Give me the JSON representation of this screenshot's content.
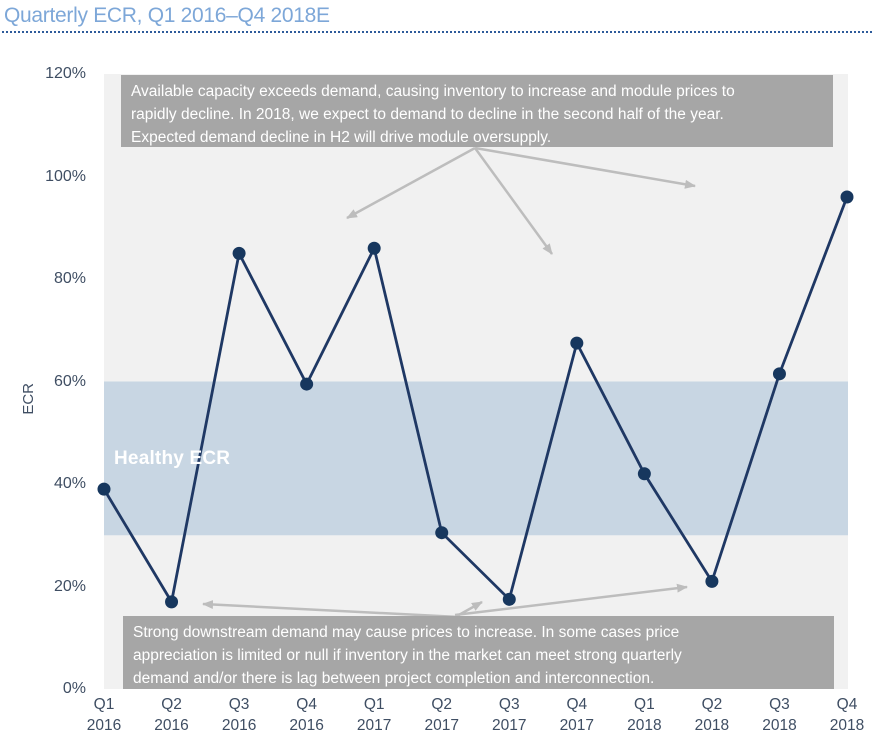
{
  "header": {
    "title": "Quarterly ECR, Q1 2016–Q4 2018E"
  },
  "chart_data": {
    "type": "line",
    "title": "Quarterly ECR, Q1 2016–Q4 2018E",
    "categories": [
      "Q1 2016",
      "Q2 2016",
      "Q3 2016",
      "Q4 2016",
      "Q1 2017",
      "Q2 2017",
      "Q3 2017",
      "Q4 2017",
      "Q1 2018",
      "Q2 2018",
      "Q3 2018",
      "Q4 2018"
    ],
    "values": [
      39,
      17,
      85,
      59.5,
      86,
      30.5,
      17.5,
      67.5,
      42,
      21,
      61.5,
      96
    ],
    "xlabel": "",
    "ylabel": "ECR",
    "ylim": [
      0,
      120
    ],
    "yticks": [
      0,
      20,
      40,
      60,
      80,
      100,
      120
    ],
    "ytick_suffix": "%",
    "grid": false,
    "legend": "none",
    "healthy_band": {
      "label": "Healthy ECR",
      "from": 30,
      "to": 60
    },
    "annotations": [
      {
        "position": "top",
        "lines": [
          "Available capacity exceeds demand, causing inventory to increase and module prices to",
          "rapidly decline. In 2018, we expect to demand to decline in the second half of the year.",
          "Expected demand decline in H2 will drive module oversupply."
        ]
      },
      {
        "position": "bottom",
        "lines": [
          "Strong downstream demand may cause prices to increase. In some cases price",
          "appreciation is limited or null if inventory in the market can meet strong quarterly",
          "demand and/or there is lag between project completion and interconnection."
        ]
      }
    ]
  },
  "colors": {
    "title_blue": "#7DA7D8",
    "rule_blue": "#2E5B9B",
    "plot_bg": "#F1F1F1",
    "band_blue": "#C8D6E3",
    "line_navy": "#1F3864",
    "point_navy": "#17375E",
    "annotation_bg": "#A6A6A6",
    "annotation_text": "#FFFFFF",
    "arrow_gray": "#BDBDBD",
    "axis_text": "#3F4E63"
  }
}
